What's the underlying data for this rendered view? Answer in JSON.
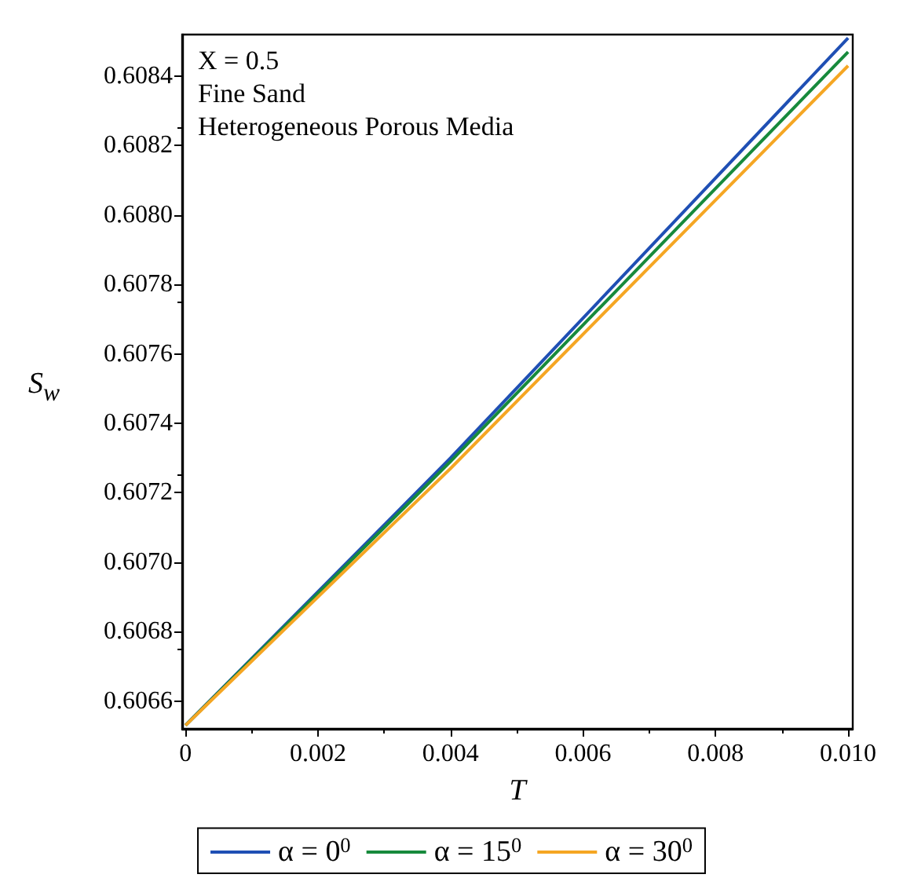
{
  "chart_data": {
    "type": "line",
    "xlabel": "T",
    "ylabel": "S$_{w}$",
    "annotations": [
      "X = 0.5",
      "Fine Sand",
      "Heterogeneous Porous Media"
    ],
    "x": [
      0,
      0.004,
      0.01
    ],
    "series": [
      {
        "name": "α = 0$^{0}$",
        "color": "#1f4fb4",
        "values": [
          0.60653,
          0.6073,
          0.60851
        ]
      },
      {
        "name": "α = 15$^{0}$",
        "color": "#178a3c",
        "values": [
          0.60653,
          0.60729,
          0.60847
        ]
      },
      {
        "name": "α = 30$^{0}$",
        "color": "#f5a623",
        "values": [
          0.60653,
          0.60727,
          0.60843
        ]
      }
    ],
    "xlim": [
      -5e-05,
      0.01007
    ],
    "ylim": [
      0.60652,
      0.60852
    ],
    "xticks": [
      {
        "value": 0,
        "label": "0"
      },
      0.002,
      0.004,
      0.006,
      0.008,
      {
        "value": 0.01,
        "label": "0.010"
      }
    ],
    "yticks": [
      0.6066,
      0.6068,
      {
        "value": 0.607,
        "label": "0.6070"
      },
      0.6072,
      0.6074,
      0.6076,
      0.6078,
      {
        "value": 0.608,
        "label": "0.6080"
      },
      0.6082,
      0.6084
    ],
    "grid": false,
    "legend": "bottom",
    "marker": "none",
    "line_style": "solid"
  }
}
